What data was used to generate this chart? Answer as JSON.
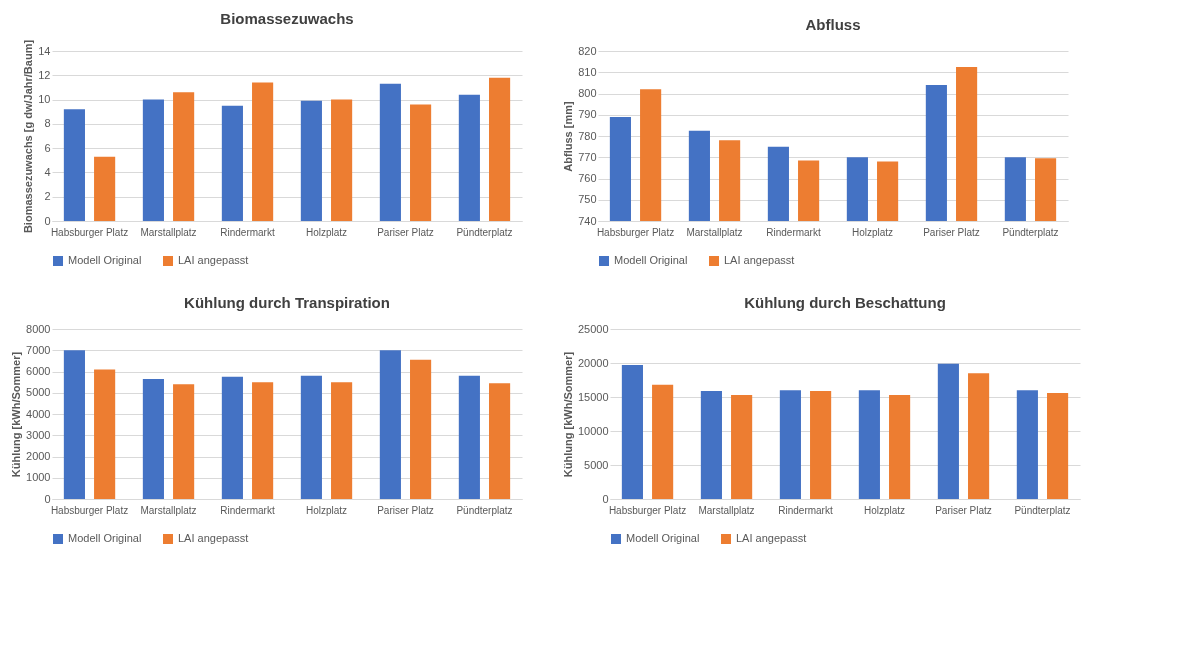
{
  "chart_data": [
    {
      "type": "bar",
      "title": "Biomassezuwachs",
      "ylabel": "Biomassezuwachs [g dw/Jahr/Baum]",
      "categories": [
        "Habsburger Platz",
        "Marstallplatz",
        "Rindermarkt",
        "Holzplatz",
        "Pariser Platz",
        "Pündterplatz"
      ],
      "series": [
        {
          "name": "Modell Original",
          "color": "#4472c4",
          "values": [
            9.2,
            10.0,
            9.5,
            9.9,
            11.3,
            10.4
          ]
        },
        {
          "name": "LAI angepasst",
          "color": "#ed7d31",
          "values": [
            5.3,
            10.6,
            11.4,
            10.0,
            9.6,
            11.8
          ]
        }
      ],
      "ylim": [
        0,
        14
      ],
      "yticks": [
        0,
        2,
        4,
        6,
        8,
        10,
        12,
        14
      ],
      "grid": "y",
      "legend": "bottom"
    },
    {
      "type": "bar",
      "title": "Abfluss",
      "ylabel": "Abfluss [mm]",
      "categories": [
        "Habsburger Platz",
        "Marstallplatz",
        "Rindermarkt",
        "Holzplatz",
        "Pariser Platz",
        "Pündterplatz"
      ],
      "series": [
        {
          "name": "Modell Original",
          "color": "#4472c4",
          "values": [
            789,
            782.5,
            775,
            770,
            804,
            770
          ]
        },
        {
          "name": "LAI angepasst",
          "color": "#ed7d31",
          "values": [
            802,
            778,
            768.5,
            768,
            812.5,
            769.5
          ]
        }
      ],
      "ylim": [
        740,
        820
      ],
      "yticks": [
        740,
        750,
        760,
        770,
        780,
        790,
        800,
        810,
        820
      ],
      "grid": "y",
      "legend": "bottom"
    },
    {
      "type": "bar",
      "title": "Kühlung durch Transpiration",
      "ylabel": "Kühlung [kWh/Sommer]",
      "categories": [
        "Habsburger Platz",
        "Marstallplatz",
        "Rindermarkt",
        "Holzplatz",
        "Pariser Platz",
        "Pündterplatz"
      ],
      "series": [
        {
          "name": "Modell Original",
          "color": "#4472c4",
          "values": [
            7000,
            5650,
            5750,
            5800,
            7000,
            5800
          ]
        },
        {
          "name": "LAI angepasst",
          "color": "#ed7d31",
          "values": [
            6100,
            5400,
            5500,
            5500,
            6550,
            5450
          ]
        }
      ],
      "ylim": [
        0,
        8000
      ],
      "yticks": [
        0,
        1000,
        2000,
        3000,
        4000,
        5000,
        6000,
        7000,
        8000
      ],
      "grid": "y",
      "legend": "bottom"
    },
    {
      "type": "bar",
      "title": "Kühlung durch Beschattung",
      "ylabel": "Kühlung [kWh/Sommer]",
      "categories": [
        "Habsburger Platz",
        "Marstallplatz",
        "Rindermarkt",
        "Holzplatz",
        "Pariser Platz",
        "Pündterplatz"
      ],
      "series": [
        {
          "name": "Modell Original",
          "color": "#4472c4",
          "values": [
            19700,
            15900,
            16000,
            16000,
            19900,
            16000
          ]
        },
        {
          "name": "LAI angepasst",
          "color": "#ed7d31",
          "values": [
            16800,
            15300,
            15900,
            15300,
            18500,
            15600
          ]
        }
      ],
      "ylim": [
        0,
        25000
      ],
      "yticks": [
        0,
        5000,
        10000,
        15000,
        20000,
        25000
      ],
      "grid": "y",
      "legend": "bottom"
    }
  ]
}
